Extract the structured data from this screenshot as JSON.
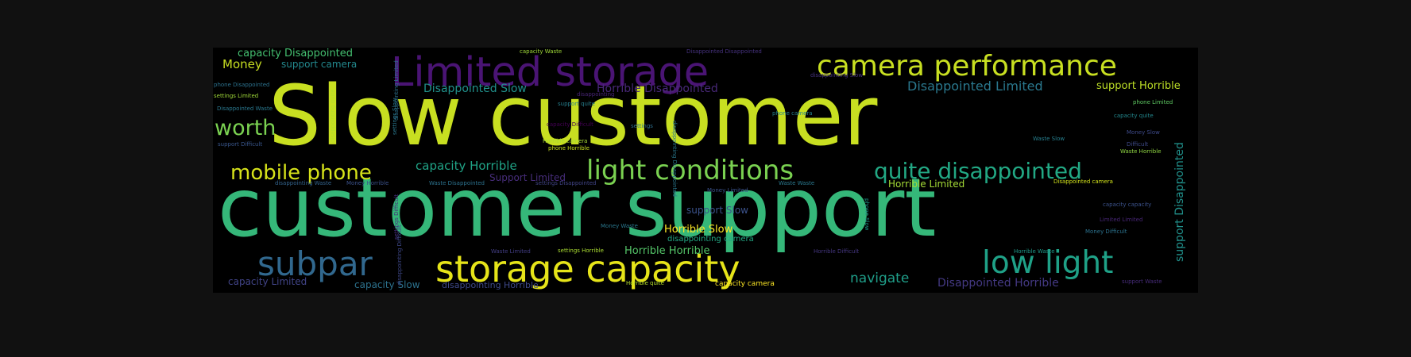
{
  "cloud": {
    "words": [
      {
        "text": "Slow customer",
        "color": "#c8df21"
      },
      {
        "text": "customer support",
        "color": "#35b779"
      },
      {
        "text": "Limited storage",
        "color": "#4a1474"
      },
      {
        "text": "camera performance",
        "color": "#c8df21"
      },
      {
        "text": "storage capacity",
        "color": "#e6e419"
      },
      {
        "text": "light conditions",
        "color": "#7ad151"
      },
      {
        "text": "quite disappointed",
        "color": "#22a884"
      },
      {
        "text": "mobile phone",
        "color": "#d6e21a"
      },
      {
        "text": "subpar",
        "color": "#31688e"
      },
      {
        "text": "low light",
        "color": "#1fa187"
      },
      {
        "text": "worth",
        "color": "#7ad151"
      },
      {
        "text": "Money",
        "color": "#c8df21"
      },
      {
        "text": "capacity Disappointed",
        "color": "#44bf70"
      },
      {
        "text": "support camera",
        "color": "#23898e"
      },
      {
        "text": "Disappointed Slow",
        "color": "#21918c"
      },
      {
        "text": "Horrible Disappointed",
        "color": "#482878"
      },
      {
        "text": "Disappointed Limited",
        "color": "#2a788e"
      },
      {
        "text": "support Horrible",
        "color": "#bddf26"
      },
      {
        "text": "capacity Horrible",
        "color": "#20a386"
      },
      {
        "text": "Support Limited",
        "color": "#472d7b"
      },
      {
        "text": "Horrible Limited",
        "color": "#a5db36"
      },
      {
        "text": "support Slow",
        "color": "#3b528b"
      },
      {
        "text": "Horrible Slow",
        "color": "#fde725"
      },
      {
        "text": "disappointing camera",
        "color": "#22a884"
      },
      {
        "text": "Horrible Horrible",
        "color": "#54c568"
      },
      {
        "text": "navigate",
        "color": "#1f9e89"
      },
      {
        "text": "Disappointed Horrible",
        "color": "#443983"
      },
      {
        "text": "capacity Limited",
        "color": "#414487"
      },
      {
        "text": "capacity Slow",
        "color": "#2c728e"
      },
      {
        "text": "disappointing Horrible",
        "color": "#3e4989"
      },
      {
        "text": "support Disappointed",
        "color": "#21918c"
      },
      {
        "text": "capacity Waste",
        "color": "#a0da39"
      },
      {
        "text": "Disappointed Disappointed",
        "color": "#46327e"
      },
      {
        "text": "disappointing Slow",
        "color": "#46337f"
      },
      {
        "text": "phone Disappointed",
        "color": "#2c728e"
      },
      {
        "text": "settings Limited",
        "color": "#a0da39"
      },
      {
        "text": "Disappointed Waste",
        "color": "#2a788e"
      },
      {
        "text": "support Difficult",
        "color": "#39568c"
      },
      {
        "text": "disappointing",
        "color": "#482475"
      },
      {
        "text": "support quite",
        "color": "#277f8e"
      },
      {
        "text": "capacity Difficult",
        "color": "#440154"
      },
      {
        "text": "settings",
        "color": "#2e6f8e"
      },
      {
        "text": "Horrible camera",
        "color": "#a8db34"
      },
      {
        "text": "phone Horrible",
        "color": "#cae11f"
      },
      {
        "text": "phone camera",
        "color": "#26828e"
      },
      {
        "text": "phone Limited",
        "color": "#5ec962"
      },
      {
        "text": "capacity quite",
        "color": "#23898e"
      },
      {
        "text": "Money Slow",
        "color": "#3e4a89"
      },
      {
        "text": "Difficult",
        "color": "#3e4a89"
      },
      {
        "text": "Waste Horrible",
        "color": "#90d743"
      },
      {
        "text": "Waste Slow",
        "color": "#277f8e"
      },
      {
        "text": "Disappointed camera",
        "color": "#d2e21b"
      },
      {
        "text": "disappointing Waste",
        "color": "#33638d"
      },
      {
        "text": "Money Horrible",
        "color": "#3b528b"
      },
      {
        "text": "Waste Disappointed",
        "color": "#2c728e"
      },
      {
        "text": "settings Disappointed",
        "color": "#414487"
      },
      {
        "text": "Waste Waste",
        "color": "#2a788e"
      },
      {
        "text": "Money Limited",
        "color": "#3b528b"
      },
      {
        "text": "Money Waste",
        "color": "#2a788e"
      },
      {
        "text": "Waste Limited",
        "color": "#433e85"
      },
      {
        "text": "settings Horrible",
        "color": "#aadc32"
      },
      {
        "text": "Horrible quite",
        "color": "#b5de2b"
      },
      {
        "text": "capacity camera",
        "color": "#fde725"
      },
      {
        "text": "Horrible Difficult",
        "color": "#453781"
      },
      {
        "text": "Horrible Waste",
        "color": "#1f9a8a"
      },
      {
        "text": "support Waste",
        "color": "#472c7a"
      },
      {
        "text": "Money Difficult",
        "color": "#2c728e"
      },
      {
        "text": "capacity capacity",
        "color": "#3b528b"
      },
      {
        "text": "Limited Limited",
        "color": "#482677"
      },
      {
        "text": "disappointing quite",
        "color": "#b5de2b"
      },
      {
        "text": "settings Slow",
        "color": "#2a788e"
      },
      {
        "text": "disappointing Limited",
        "color": "#2c728e"
      },
      {
        "text": "settings Difficult",
        "color": "#472e7c"
      },
      {
        "text": "disappointing Difficult",
        "color": "#3f4889"
      },
      {
        "text": "phone Slow",
        "color": "#1f988b"
      },
      {
        "text": "disappointing Disappointed",
        "color": "#2a788e"
      }
    ]
  }
}
